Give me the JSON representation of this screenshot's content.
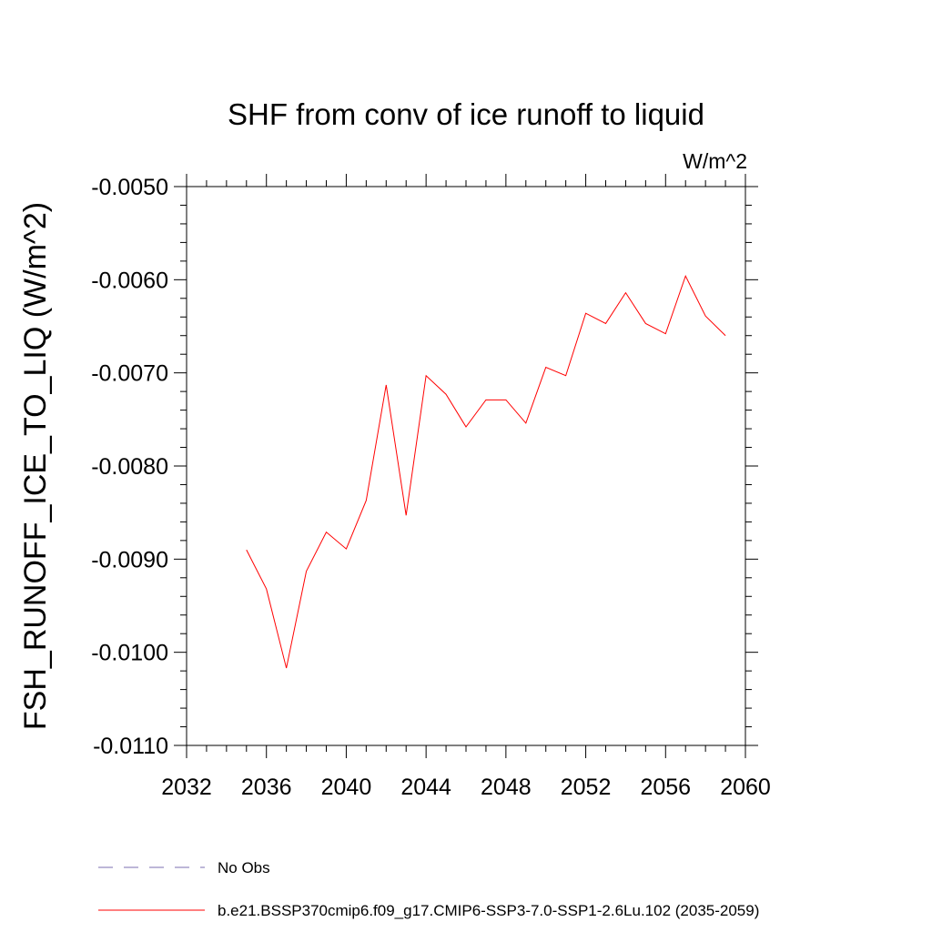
{
  "chart_data": {
    "type": "line",
    "title": "SHF from conv of ice runoff to liquid",
    "units": "W/m^2",
    "ylabel": "FSH_RUNOFF_ICE_TO_LIQ  (W/m^2)",
    "xlabel": "",
    "xlim": [
      2032,
      2060
    ],
    "ylim": [
      -0.011,
      -0.005
    ],
    "xticks": [
      2032,
      2036,
      2040,
      2044,
      2048,
      2052,
      2056,
      2060
    ],
    "xtick_labels": [
      "2032",
      "2036",
      "2040",
      "2044",
      "2048",
      "2052",
      "2056",
      "2060"
    ],
    "yticks": [
      -0.005,
      -0.006,
      -0.007,
      -0.008,
      -0.009,
      -0.01,
      -0.011
    ],
    "ytick_labels": [
      "-0.0050",
      "-0.0060",
      "-0.0070",
      "-0.0080",
      "-0.0090",
      "-0.0100",
      "-0.0110"
    ],
    "grid": false,
    "legend_position": "bottom",
    "series": [
      {
        "name": "No Obs",
        "color": "#7b6fb0",
        "style": "dashed",
        "x": [],
        "values": []
      },
      {
        "name": "b.e21.BSSP370cmip6.f09_g17.CMIP6-SSP3-7.0-SSP1-2.6Lu.102 (2035-2059)",
        "color": "#ff0000",
        "style": "solid",
        "x": [
          2035,
          2036,
          2037,
          2038,
          2039,
          2040,
          2041,
          2042,
          2043,
          2044,
          2045,
          2046,
          2047,
          2048,
          2049,
          2050,
          2051,
          2052,
          2053,
          2054,
          2055,
          2056,
          2057,
          2058,
          2059
        ],
        "values": [
          -0.0089,
          -0.00932,
          -0.01017,
          -0.00913,
          -0.00871,
          -0.00889,
          -0.00837,
          -0.00713,
          -0.00853,
          -0.00703,
          -0.00723,
          -0.00758,
          -0.00729,
          -0.00729,
          -0.00754,
          -0.00694,
          -0.00703,
          -0.00636,
          -0.00647,
          -0.00614,
          -0.00647,
          -0.00658,
          -0.00596,
          -0.00639,
          -0.0066
        ]
      }
    ]
  }
}
